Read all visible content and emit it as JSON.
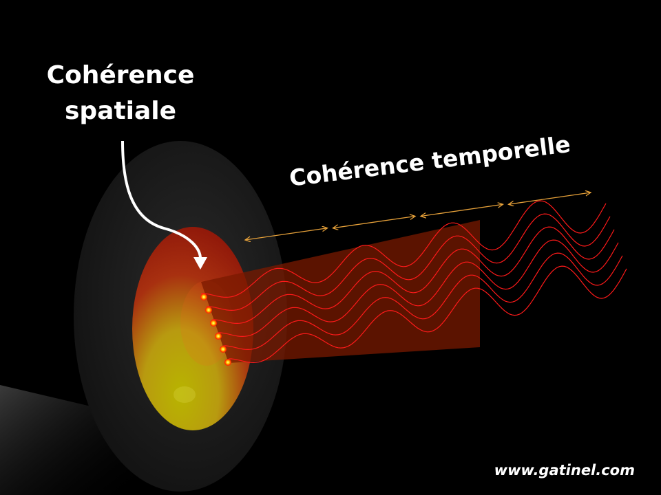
{
  "labels": {
    "spatial_line1": "Cohérence",
    "spatial_line2": "spatiale",
    "temporal": "Cohérence temporelle"
  },
  "watermark": "www.gatinel.com",
  "colors": {
    "background": "#000000",
    "wave": "#ff1a1a",
    "emitter": "#ff2a00",
    "arrow": "#e8a23a",
    "beam": "#7a1a00",
    "text": "#ffffff"
  },
  "diagram": {
    "emitter_count": 6,
    "wave_count": 6,
    "coherence_segment_count": 4
  }
}
